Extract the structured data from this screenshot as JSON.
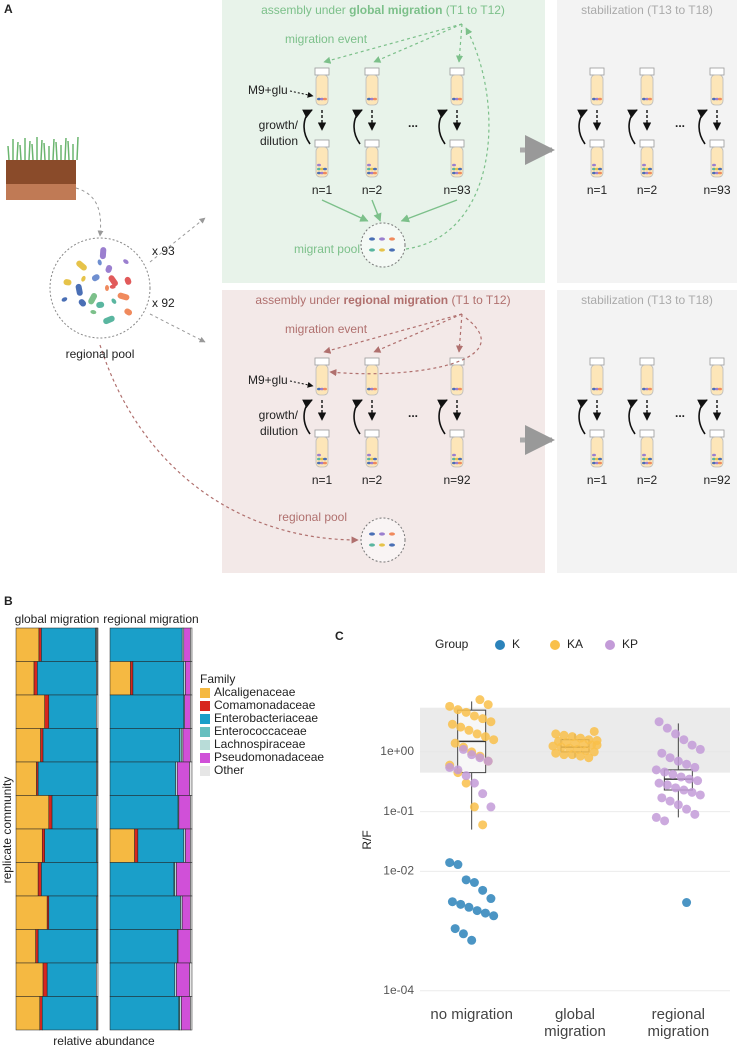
{
  "figure_a": {
    "label": "A",
    "global": {
      "title": {
        "prefix": "assembly under ",
        "bold": "global migration",
        "suffix": " (T1 to T12)"
      },
      "migration_event": "migration event",
      "medium": "M9+glu",
      "growth": [
        "growth/",
        "dilution"
      ],
      "n": [
        "n=1",
        "n=2",
        "n=93"
      ],
      "ellipsis": "...",
      "pool": "migrant pool",
      "replicates": "x 93"
    },
    "regional": {
      "title": {
        "prefix": "assembly under ",
        "bold": "regional migration",
        "suffix": " (T1 to T12)"
      },
      "migration_event": "migration event",
      "medium": "M9+glu",
      "growth": [
        "growth/",
        "dilution"
      ],
      "n": [
        "n=1",
        "n=2",
        "n=92"
      ],
      "ellipsis": "...",
      "pool": "regional pool",
      "replicates": "x 92"
    },
    "stabilization": [
      {
        "title": "stabilization (T13 to T18)",
        "n": [
          "n=1",
          "n=2",
          "n=93"
        ],
        "ellipsis": "..."
      },
      {
        "title": "stabilization (T13 to T18)",
        "n": [
          "n=1",
          "n=2",
          "n=92"
        ],
        "ellipsis": "..."
      }
    ],
    "source_pool": "regional pool"
  },
  "chart_data": [
    {
      "type": "bar",
      "orientation": "horizontal",
      "stacked": true,
      "label": "B",
      "facets": [
        "global migration",
        "regional migration"
      ],
      "xlabel": "relative abundance",
      "ylabel": "replicate community",
      "legend_title": "Family",
      "series": [
        {
          "name": "Alcaligenaceae",
          "color": "#f5b942",
          "values": [
            [
              0.28,
              0.22,
              0.35,
              0.3,
              0.25,
              0.4,
              0.32,
              0.27,
              0.38,
              0.24,
              0.33,
              0.29
            ],
            [
              0,
              0.25,
              0,
              0,
              0,
              0,
              0.3,
              0,
              0,
              0,
              0,
              0
            ]
          ]
        },
        {
          "name": "Comamonadaceae",
          "color": "#d7261e",
          "values": [
            [
              0.03,
              0.04,
              0.05,
              0.03,
              0.02,
              0.04,
              0.03,
              0.04,
              0.02,
              0.03,
              0.05,
              0.03
            ],
            [
              0,
              0.03,
              0,
              0,
              0,
              0,
              0.04,
              0,
              0,
              0,
              0,
              0
            ]
          ]
        },
        {
          "name": "Enterobacteriaceae",
          "color": "#1a9fc9",
          "values": [
            [
              0.66,
              0.72,
              0.58,
              0.65,
              0.71,
              0.54,
              0.63,
              0.68,
              0.58,
              0.71,
              0.6,
              0.66
            ],
            [
              0.88,
              0.62,
              0.9,
              0.85,
              0.8,
              0.83,
              0.56,
              0.78,
              0.86,
              0.82,
              0.79,
              0.84
            ]
          ]
        },
        {
          "name": "Enterococcaceae",
          "color": "#66bfbf",
          "values": [
            [
              0.01,
              0,
              0,
              0.01,
              0,
              0,
              0.01,
              0,
              0,
              0.01,
              0,
              0
            ],
            [
              0,
              0,
              0,
              0.02,
              0,
              0,
              0,
              0.01,
              0,
              0,
              0,
              0.01
            ]
          ]
        },
        {
          "name": "Lachnospiraceae",
          "color": "#b8dcd8",
          "values": [
            [
              0.01,
              0.01,
              0,
              0,
              0.01,
              0,
              0,
              0,
              0.01,
              0,
              0,
              0.01
            ],
            [
              0.02,
              0.02,
              0.01,
              0.02,
              0.02,
              0.01,
              0.02,
              0.02,
              0.02,
              0.01,
              0.02,
              0.02
            ]
          ]
        },
        {
          "name": "Pseudomonadaceae",
          "color": "#d050d8",
          "values": [
            [
              0,
              0,
              0,
              0,
              0,
              0,
              0,
              0,
              0,
              0,
              0,
              0
            ],
            [
              0.08,
              0.06,
              0.07,
              0.09,
              0.15,
              0.14,
              0.06,
              0.17,
              0.1,
              0.15,
              0.16,
              0.11
            ]
          ]
        },
        {
          "name": "Other",
          "color": "#e6e6e6",
          "values": [
            [
              0.01,
              0.01,
              0.02,
              0.01,
              0.01,
              0.02,
              0.01,
              0.01,
              0.01,
              0.01,
              0.02,
              0.01
            ],
            [
              0.02,
              0.02,
              0.02,
              0.02,
              0.03,
              0.02,
              0.02,
              0.02,
              0.02,
              0.02,
              0.03,
              0.02
            ]
          ]
        }
      ]
    },
    {
      "type": "scatter",
      "label": "C",
      "ylabel": "R/F",
      "legend_title": "Group",
      "legend_position": "top",
      "categories": [
        "no migration",
        "global migration",
        "regional migration"
      ],
      "log_y": true,
      "ylim": [
        7e-05,
        16
      ],
      "yticks": [
        {
          "value": 0.0001,
          "label": "1e-04"
        },
        {
          "value": 0.01,
          "label": "1e-02"
        },
        {
          "value": 0.1,
          "label": "1e-01"
        },
        {
          "value": 1,
          "label": "1e+00"
        }
      ],
      "grid": true,
      "shaded_range": [
        0.45,
        5.5
      ],
      "boxes": [
        {
          "whisker_low": 0.05,
          "q1": 0.45,
          "median": 1.5,
          "q3": 5.0,
          "whisker_high": 7
        },
        {
          "whisker_low": 0.8,
          "q1": 1.0,
          "median": 1.2,
          "q3": 1.6,
          "whisker_high": 2.0
        },
        {
          "whisker_low": 0.08,
          "q1": 0.23,
          "median": 0.35,
          "q3": 0.5,
          "whisker_high": 3.0
        }
      ],
      "series": [
        {
          "name": "K",
          "color": "#2b83ba",
          "x": [
            "no migration",
            "no migration",
            "no migration",
            "no migration",
            "no migration",
            "no migration",
            "no migration",
            "no migration",
            "no migration",
            "no migration",
            "no migration",
            "no migration",
            "no migration",
            "no migration",
            "no migration",
            "regional migration"
          ],
          "values": [
            0.014,
            0.013,
            0.0072,
            0.0065,
            0.0048,
            0.0035,
            0.0031,
            0.0028,
            0.0025,
            0.0022,
            0.002,
            0.0018,
            0.0011,
            0.0009,
            0.0007,
            0.003
          ]
        },
        {
          "name": "KA",
          "color": "#f9c04a",
          "x": [
            "no migration",
            "no migration",
            "no migration",
            "no migration",
            "no migration",
            "no migration",
            "no migration",
            "no migration",
            "no migration",
            "no migration",
            "no migration",
            "no migration",
            "no migration",
            "no migration",
            "no migration",
            "no migration",
            "no migration",
            "no migration",
            "no migration",
            "no migration",
            "no migration",
            "no migration",
            "no migration",
            "no migration",
            "global migration",
            "global migration",
            "global migration",
            "global migration",
            "global migration",
            "global migration",
            "global migration",
            "global migration",
            "global migration",
            "global migration",
            "global migration",
            "global migration",
            "global migration",
            "global migration",
            "global migration",
            "global migration",
            "global migration",
            "global migration",
            "global migration",
            "global migration",
            "global migration",
            "global migration",
            "global migration",
            "global migration"
          ],
          "values": [
            7.5,
            6.2,
            5.8,
            5.1,
            4.6,
            4.0,
            3.6,
            3.2,
            2.9,
            2.6,
            2.3,
            2.0,
            1.8,
            1.6,
            1.4,
            1.2,
            1.0,
            0.85,
            0.7,
            0.6,
            0.45,
            0.3,
            0.12,
            0.06,
            2.2,
            2.0,
            1.9,
            1.8,
            1.7,
            1.6,
            1.55,
            1.5,
            1.45,
            1.4,
            1.35,
            1.3,
            1.25,
            1.2,
            1.15,
            1.1,
            1.05,
            1.0,
            0.95,
            0.9,
            0.9,
            0.85,
            0.8,
            1.3
          ]
        },
        {
          "name": "KP",
          "color": "#c39bd8",
          "x": [
            "no migration",
            "no migration",
            "no migration",
            "no migration",
            "no migration",
            "no migration",
            "no migration",
            "no migration",
            "no migration",
            "no migration",
            "regional migration",
            "regional migration",
            "regional migration",
            "regional migration",
            "regional migration",
            "regional migration",
            "regional migration",
            "regional migration",
            "regional migration",
            "regional migration",
            "regional migration",
            "regional migration",
            "regional migration",
            "regional migration",
            "regional migration",
            "regional migration",
            "regional migration",
            "regional migration",
            "regional migration",
            "regional migration",
            "regional migration",
            "regional migration",
            "regional migration",
            "regional migration",
            "regional migration",
            "regional migration",
            "regional migration",
            "regional migration",
            "regional migration",
            "regional migration"
          ],
          "values": [
            1.1,
            0.9,
            0.8,
            0.7,
            0.55,
            0.5,
            0.4,
            0.3,
            0.2,
            0.12,
            3.2,
            2.5,
            2.0,
            1.6,
            1.3,
            1.1,
            0.95,
            0.8,
            0.7,
            0.62,
            0.55,
            0.5,
            0.46,
            0.42,
            0.38,
            0.35,
            0.33,
            0.3,
            0.28,
            0.25,
            0.23,
            0.21,
            0.19,
            0.17,
            0.15,
            0.13,
            0.11,
            0.09,
            0.08,
            0.07
          ]
        }
      ]
    }
  ]
}
